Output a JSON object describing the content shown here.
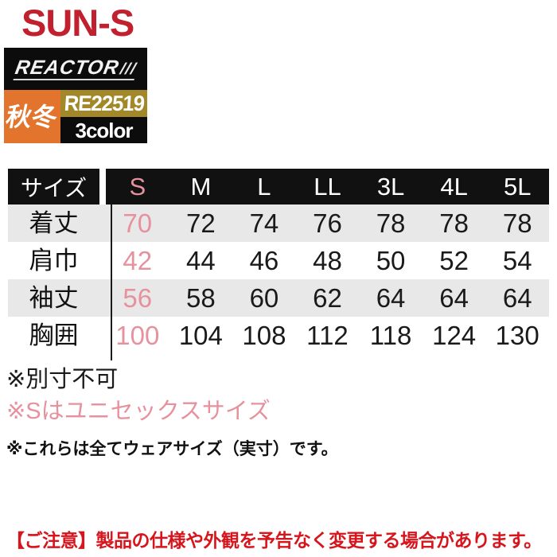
{
  "brand": {
    "logo": "SUN-S",
    "series_logo": "REACTOR",
    "series_slashes": "///"
  },
  "badges": {
    "season": "秋冬",
    "product_code": "RE22519",
    "color_count": "3color"
  },
  "table": {
    "header_label": "サイズ",
    "sizes": [
      "S",
      "M",
      "L",
      "LL",
      "3L",
      "4L",
      "5L"
    ],
    "rows": [
      {
        "label": "着丈",
        "values": [
          "70",
          "72",
          "74",
          "76",
          "78",
          "78",
          "78"
        ]
      },
      {
        "label": "肩巾",
        "values": [
          "42",
          "44",
          "46",
          "48",
          "50",
          "52",
          "54"
        ]
      },
      {
        "label": "袖丈",
        "values": [
          "56",
          "58",
          "60",
          "62",
          "64",
          "64",
          "64"
        ]
      },
      {
        "label": "胸囲",
        "values": [
          "100",
          "104",
          "108",
          "112",
          "118",
          "124",
          "130"
        ]
      }
    ]
  },
  "notes": {
    "note1": "※別寸不可",
    "note2": "※Sはユニセックスサイズ",
    "note3": "※これらは全てウェアサイズ（実寸）です。"
  },
  "caution": "【ご注意】製品の仕様や外観を予告なく変更する場合があります。",
  "colors": {
    "brand_red": "#c1202e",
    "accent_pink": "#e6929e",
    "season_orange": "#e2742d",
    "code_olive": "#a3882a",
    "caution_red": "#d6151d",
    "row_gray": "#e8e8e8",
    "header_black": "#111111"
  }
}
